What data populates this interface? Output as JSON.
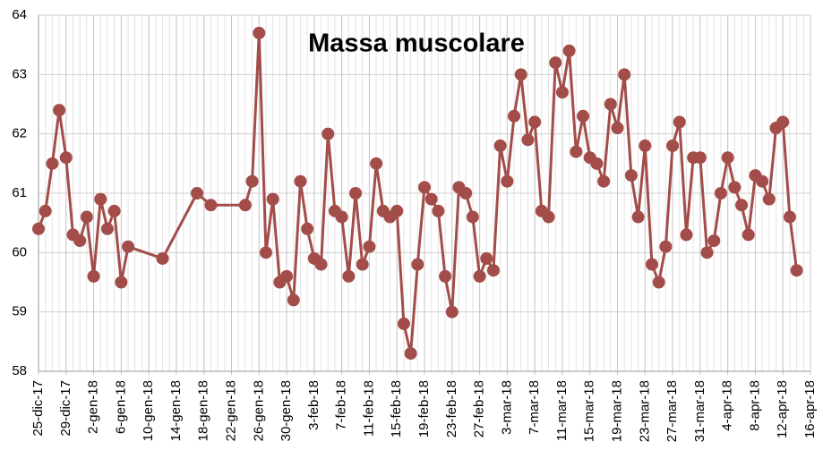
{
  "chart_data": {
    "type": "line",
    "title": "Massa muscolare",
    "x": [
      "2017-12-25",
      "2017-12-26",
      "2017-12-27",
      "2017-12-28",
      "2017-12-29",
      "2017-12-30",
      "2017-12-31",
      "2018-01-01",
      "2018-01-02",
      "2018-01-03",
      "2018-01-04",
      "2018-01-05",
      "2018-01-06",
      "2018-01-07",
      "2018-01-12",
      "2018-01-17",
      "2018-01-19",
      "2018-01-24",
      "2018-01-25",
      "2018-01-26",
      "2018-01-27",
      "2018-01-28",
      "2018-01-29",
      "2018-01-30",
      "2018-01-31",
      "2018-02-01",
      "2018-02-02",
      "2018-02-03",
      "2018-02-04",
      "2018-02-05",
      "2018-02-06",
      "2018-02-07",
      "2018-02-08",
      "2018-02-09",
      "2018-02-10",
      "2018-02-11",
      "2018-02-12",
      "2018-02-13",
      "2018-02-14",
      "2018-02-15",
      "2018-02-16",
      "2018-02-17",
      "2018-02-18",
      "2018-02-19",
      "2018-02-20",
      "2018-02-21",
      "2018-02-22",
      "2018-02-23",
      "2018-02-24",
      "2018-02-25",
      "2018-02-26",
      "2018-02-27",
      "2018-02-28",
      "2018-03-01",
      "2018-03-02",
      "2018-03-03",
      "2018-03-04",
      "2018-03-05",
      "2018-03-06",
      "2018-03-07",
      "2018-03-08",
      "2018-03-09",
      "2018-03-10",
      "2018-03-11",
      "2018-03-12",
      "2018-03-13",
      "2018-03-14",
      "2018-03-15",
      "2018-03-16",
      "2018-03-17",
      "2018-03-18",
      "2018-03-19",
      "2018-03-20",
      "2018-03-21",
      "2018-03-22",
      "2018-03-23",
      "2018-03-24",
      "2018-03-25",
      "2018-03-26",
      "2018-03-27",
      "2018-03-28",
      "2018-03-29",
      "2018-03-30",
      "2018-03-31",
      "2018-04-01",
      "2018-04-02",
      "2018-04-03",
      "2018-04-04",
      "2018-04-05",
      "2018-04-06",
      "2018-04-07",
      "2018-04-08",
      "2018-04-09",
      "2018-04-10",
      "2018-04-11",
      "2018-04-12",
      "2018-04-13",
      "2018-04-14"
    ],
    "values": [
      60.4,
      60.7,
      61.5,
      62.4,
      61.6,
      60.3,
      60.2,
      60.6,
      59.6,
      60.9,
      60.4,
      60.7,
      59.5,
      60.1,
      59.9,
      61.0,
      60.8,
      60.8,
      61.2,
      63.7,
      60.0,
      60.9,
      59.5,
      59.6,
      59.2,
      61.2,
      60.4,
      59.9,
      59.8,
      62.0,
      60.7,
      60.6,
      59.6,
      61.0,
      59.8,
      60.1,
      61.5,
      60.7,
      60.6,
      60.7,
      58.8,
      58.3,
      59.8,
      61.1,
      60.9,
      60.7,
      59.6,
      59.0,
      61.1,
      61.0,
      60.6,
      59.6,
      59.9,
      59.7,
      61.8,
      61.2,
      62.3,
      63.0,
      61.9,
      62.2,
      60.7,
      60.6,
      63.2,
      62.7,
      63.4,
      61.7,
      62.3,
      61.6,
      61.5,
      61.2,
      62.5,
      62.1,
      63.0,
      61.3,
      60.6,
      61.8,
      59.8,
      59.5,
      60.1,
      61.8,
      62.2,
      60.3,
      61.6,
      61.6,
      60.0,
      60.2,
      61.0,
      61.6,
      61.1,
      60.8,
      60.3,
      61.3,
      61.2,
      60.9,
      62.1,
      62.2,
      60.6,
      59.7
    ],
    "color": "#a24d49",
    "xlim": [
      "2017-12-25",
      "2018-04-16"
    ],
    "xticks": [
      {
        "value": "2017-12-25",
        "label": "25-dic-17"
      },
      {
        "value": "2017-12-29",
        "label": "29-dic-17"
      },
      {
        "value": "2018-01-02",
        "label": "2-gen-18"
      },
      {
        "value": "2018-01-06",
        "label": "6-gen-18"
      },
      {
        "value": "2018-01-10",
        "label": "10-gen-18"
      },
      {
        "value": "2018-01-14",
        "label": "14-gen-18"
      },
      {
        "value": "2018-01-18",
        "label": "18-gen-18"
      },
      {
        "value": "2018-01-22",
        "label": "22-gen-18"
      },
      {
        "value": "2018-01-26",
        "label": "26-gen-18"
      },
      {
        "value": "2018-01-30",
        "label": "30-gen-18"
      },
      {
        "value": "2018-02-03",
        "label": "3-feb-18"
      },
      {
        "value": "2018-02-07",
        "label": "7-feb-18"
      },
      {
        "value": "2018-02-11",
        "label": "11-feb-18"
      },
      {
        "value": "2018-02-15",
        "label": "15-feb-18"
      },
      {
        "value": "2018-02-19",
        "label": "19-feb-18"
      },
      {
        "value": "2018-02-23",
        "label": "23-feb-18"
      },
      {
        "value": "2018-02-27",
        "label": "27-feb-18"
      },
      {
        "value": "2018-03-03",
        "label": "3-mar-18"
      },
      {
        "value": "2018-03-07",
        "label": "7-mar-18"
      },
      {
        "value": "2018-03-11",
        "label": "11-mar-18"
      },
      {
        "value": "2018-03-15",
        "label": "15-mar-18"
      },
      {
        "value": "2018-03-19",
        "label": "19-mar-18"
      },
      {
        "value": "2018-03-23",
        "label": "23-mar-18"
      },
      {
        "value": "2018-03-27",
        "label": "27-mar-18"
      },
      {
        "value": "2018-03-31",
        "label": "31-mar-18"
      },
      {
        "value": "2018-04-04",
        "label": "4-apr-18"
      },
      {
        "value": "2018-04-08",
        "label": "8-apr-18"
      },
      {
        "value": "2018-04-12",
        "label": "12-apr-18"
      },
      {
        "value": "2018-04-16",
        "label": "16-apr-18"
      }
    ],
    "ylim": [
      58,
      64
    ],
    "yticks": [
      58,
      59,
      60,
      61,
      62,
      63,
      64
    ],
    "grid": true
  }
}
